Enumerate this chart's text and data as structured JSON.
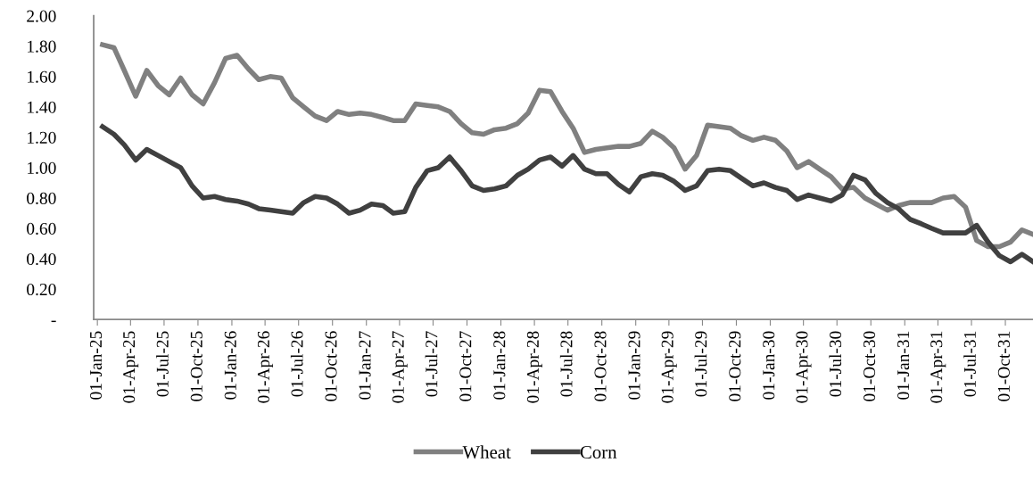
{
  "chart_data": {
    "type": "line",
    "x": [
      "2025-01-15",
      "2025-02-15",
      "2025-03-15",
      "2025-04-15",
      "2025-05-15",
      "2025-06-15",
      "2025-07-15",
      "2025-08-15",
      "2025-09-15",
      "2025-10-15",
      "2025-11-15",
      "2025-12-15",
      "2026-01-15",
      "2026-02-15",
      "2026-03-15",
      "2026-04-15",
      "2026-05-15",
      "2026-06-15",
      "2026-07-15",
      "2026-08-15",
      "2026-09-15",
      "2026-10-15",
      "2026-11-15",
      "2026-12-15",
      "2027-01-15",
      "2027-02-15",
      "2027-03-15",
      "2027-04-15",
      "2027-05-15",
      "2027-06-15",
      "2027-07-15",
      "2027-08-15",
      "2027-09-15",
      "2027-10-15",
      "2027-11-15",
      "2027-12-15",
      "2028-01-15",
      "2028-02-15",
      "2028-03-15",
      "2028-04-15",
      "2028-05-15",
      "2028-06-15",
      "2028-07-15",
      "2028-08-15",
      "2028-09-15",
      "2028-10-15",
      "2028-11-15",
      "2028-12-15",
      "2029-01-15",
      "2029-02-15",
      "2029-03-15",
      "2029-04-15",
      "2029-05-15",
      "2029-06-15",
      "2029-07-15",
      "2029-08-15",
      "2029-09-15",
      "2029-10-15",
      "2029-11-15",
      "2029-12-15",
      "2030-01-15",
      "2030-02-15",
      "2030-03-15",
      "2030-04-15",
      "2030-05-15",
      "2030-06-15",
      "2030-07-15",
      "2030-08-15",
      "2030-09-15",
      "2030-10-15",
      "2030-11-15",
      "2030-12-15",
      "2031-01-15",
      "2031-02-15",
      "2031-03-15",
      "2031-04-15",
      "2031-05-15",
      "2031-06-15",
      "2031-07-15",
      "2031-08-15",
      "2031-09-15",
      "2031-10-15",
      "2031-11-15",
      "2031-12-15"
    ],
    "series": [
      {
        "name": "Wheat",
        "color": "#808080",
        "values": [
          1.81,
          1.79,
          1.64,
          1.47,
          1.64,
          1.54,
          1.48,
          1.59,
          1.48,
          1.42,
          1.56,
          1.72,
          1.74,
          1.65,
          1.58,
          1.6,
          1.59,
          1.46,
          1.4,
          1.34,
          1.31,
          1.37,
          1.35,
          1.36,
          1.35,
          1.33,
          1.31,
          1.31,
          1.42,
          1.41,
          1.4,
          1.37,
          1.29,
          1.23,
          1.22,
          1.25,
          1.26,
          1.29,
          1.36,
          1.51,
          1.5,
          1.37,
          1.26,
          1.1,
          1.12,
          1.13,
          1.14,
          1.14,
          1.16,
          1.24,
          1.2,
          1.13,
          0.99,
          1.08,
          1.28,
          1.27,
          1.26,
          1.21,
          1.18,
          1.2,
          1.18,
          1.11,
          1.0,
          1.04,
          0.99,
          0.94,
          0.86,
          0.87,
          0.8,
          0.76,
          0.72,
          0.75,
          0.77,
          0.77,
          0.77,
          0.8,
          0.81,
          0.74,
          0.52,
          0.48,
          0.48,
          0.51,
          0.59,
          0.56
        ]
      },
      {
        "name": "Corn",
        "color": "#404040",
        "values": [
          1.27,
          1.22,
          1.15,
          1.05,
          1.12,
          1.08,
          1.04,
          1.0,
          0.88,
          0.8,
          0.81,
          0.79,
          0.78,
          0.76,
          0.73,
          0.72,
          0.71,
          0.7,
          0.77,
          0.81,
          0.8,
          0.76,
          0.7,
          0.72,
          0.76,
          0.75,
          0.7,
          0.71,
          0.87,
          0.98,
          1.0,
          1.07,
          0.98,
          0.88,
          0.85,
          0.86,
          0.88,
          0.95,
          0.99,
          1.05,
          1.07,
          1.01,
          1.08,
          0.99,
          0.96,
          0.96,
          0.89,
          0.84,
          0.94,
          0.96,
          0.95,
          0.91,
          0.85,
          0.88,
          0.98,
          0.99,
          0.98,
          0.93,
          0.88,
          0.9,
          0.87,
          0.85,
          0.79,
          0.82,
          0.8,
          0.78,
          0.82,
          0.95,
          0.92,
          0.83,
          0.77,
          0.73,
          0.66,
          0.63,
          0.6,
          0.57,
          0.57,
          0.57,
          0.62,
          0.51,
          0.42,
          0.38,
          0.43,
          0.38
        ]
      }
    ],
    "xlim": [
      "2024-12-22",
      "2031-12-15"
    ],
    "xticks": [
      {
        "value": "2025-01-01",
        "label": "01-Jan-25"
      },
      {
        "value": "2025-04-01",
        "label": "01-Apr-25"
      },
      {
        "value": "2025-07-01",
        "label": "01-Jul-25"
      },
      {
        "value": "2025-10-01",
        "label": "01-Oct-25"
      },
      {
        "value": "2026-01-01",
        "label": "01-Jan-26"
      },
      {
        "value": "2026-04-01",
        "label": "01-Apr-26"
      },
      {
        "value": "2026-07-01",
        "label": "01-Jul-26"
      },
      {
        "value": "2026-10-01",
        "label": "01-Oct-26"
      },
      {
        "value": "2027-01-01",
        "label": "01-Jan-27"
      },
      {
        "value": "2027-04-01",
        "label": "01-Apr-27"
      },
      {
        "value": "2027-07-01",
        "label": "01-Jul-27"
      },
      {
        "value": "2027-10-01",
        "label": "01-Oct-27"
      },
      {
        "value": "2028-01-01",
        "label": "01-Jan-28"
      },
      {
        "value": "2028-04-01",
        "label": "01-Apr-28"
      },
      {
        "value": "2028-07-01",
        "label": "01-Jul-28"
      },
      {
        "value": "2028-10-01",
        "label": "01-Oct-28"
      },
      {
        "value": "2029-01-01",
        "label": "01-Jan-29"
      },
      {
        "value": "2029-04-01",
        "label": "01-Apr-29"
      },
      {
        "value": "2029-07-01",
        "label": "01-Jul-29"
      },
      {
        "value": "2029-10-01",
        "label": "01-Oct-29"
      },
      {
        "value": "2030-01-01",
        "label": "01-Jan-30"
      },
      {
        "value": "2030-04-01",
        "label": "01-Apr-30"
      },
      {
        "value": "2030-07-01",
        "label": "01-Jul-30"
      },
      {
        "value": "2030-10-01",
        "label": "01-Oct-30"
      },
      {
        "value": "2031-01-01",
        "label": "01-Jan-31"
      },
      {
        "value": "2031-04-01",
        "label": "01-Apr-31"
      },
      {
        "value": "2031-07-01",
        "label": "01-Jul-31"
      },
      {
        "value": "2031-10-01",
        "label": "01-Oct-31"
      }
    ],
    "ylim": [
      0,
      2
    ],
    "yticks": [
      {
        "value": 0,
        "label": "-"
      },
      {
        "value": 0.2,
        "label": "0.20"
      },
      {
        "value": 0.4,
        "label": "0.40"
      },
      {
        "value": 0.6,
        "label": "0.60"
      },
      {
        "value": 0.8,
        "label": "0.80"
      },
      {
        "value": 1.0,
        "label": "1.00"
      },
      {
        "value": 1.2,
        "label": "1.20"
      },
      {
        "value": 1.4,
        "label": "1.40"
      },
      {
        "value": 1.6,
        "label": "1.60"
      },
      {
        "value": 1.8,
        "label": "1.80"
      },
      {
        "value": 2.0,
        "label": "2.00"
      }
    ],
    "grid": false,
    "legend": "bottom",
    "marker": "none",
    "line_style": "solid"
  }
}
